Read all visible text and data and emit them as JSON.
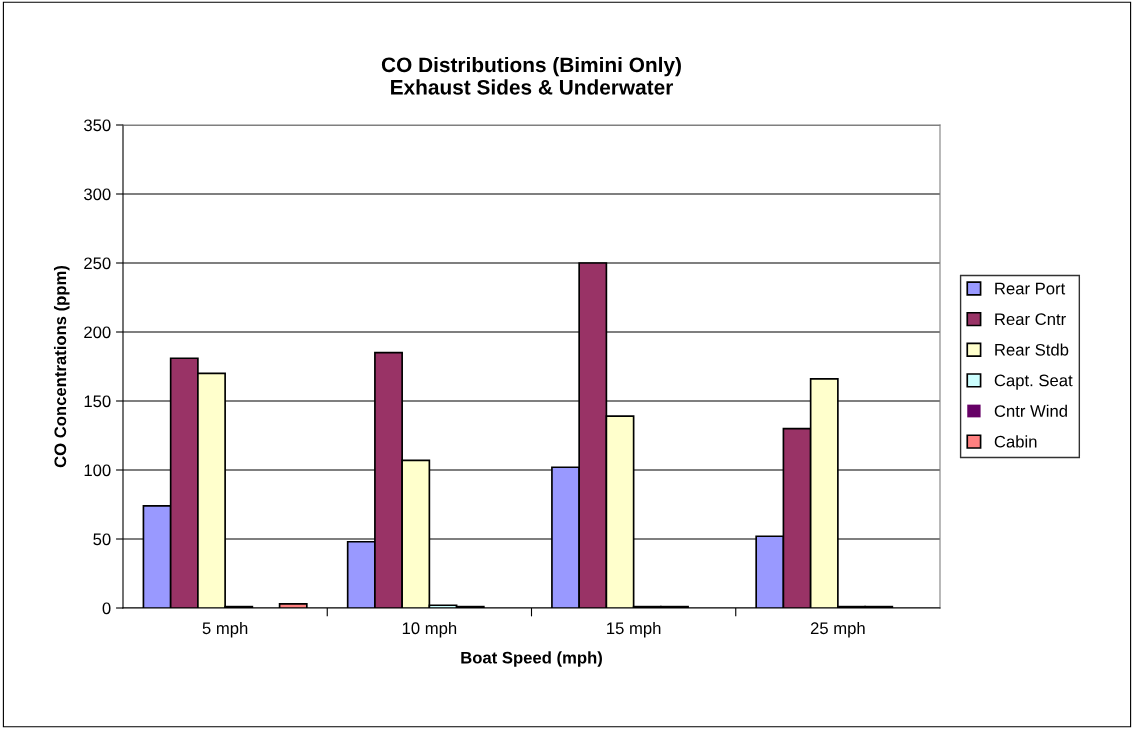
{
  "chart_data": {
    "type": "bar",
    "title": "CO Distributions (Bimini Only)\nExhaust Sides & Underwater",
    "xlabel": "Boat Speed (mph)",
    "ylabel": "CO Concentrations (ppm)",
    "categories": [
      "5 mph",
      "10 mph",
      "15 mph",
      "25 mph"
    ],
    "series": [
      {
        "name": "Rear Port",
        "color": "#9999ff",
        "values": [
          74,
          48,
          102,
          52
        ]
      },
      {
        "name": "Rear Cntr",
        "color": "#993366",
        "values": [
          181,
          185,
          250,
          130
        ]
      },
      {
        "name": "Rear Stdb",
        "color": "#ffffcc",
        "values": [
          170,
          107,
          139,
          166
        ]
      },
      {
        "name": "Capt. Seat",
        "color": "#ccffff",
        "values": [
          1,
          2,
          1,
          1
        ]
      },
      {
        "name": "Cntr Wind",
        "color": "#660066",
        "values": [
          0,
          1,
          1,
          1
        ]
      },
      {
        "name": "Cabin",
        "color": "#ff8080",
        "values": [
          3,
          0,
          0,
          0
        ]
      }
    ],
    "ylim": [
      0,
      350
    ],
    "yticks": [
      0,
      50,
      100,
      150,
      200,
      250,
      300,
      350
    ],
    "grid": "y",
    "legend": "right"
  }
}
